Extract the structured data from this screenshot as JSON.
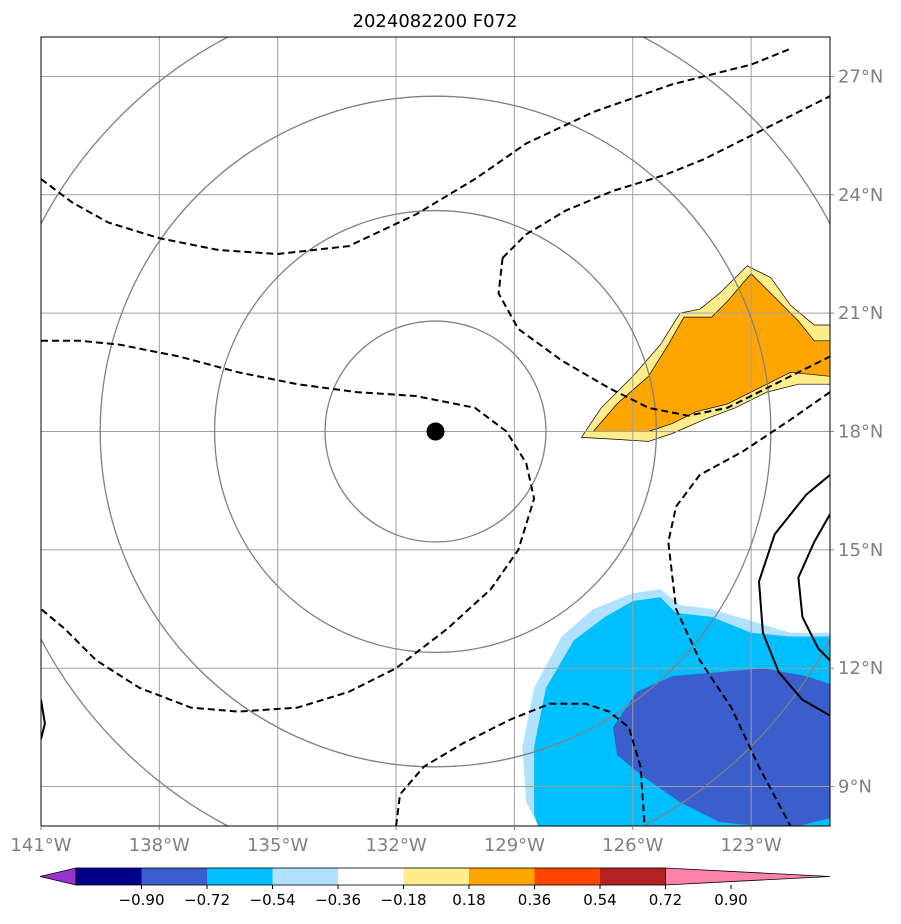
{
  "chart_data": {
    "type": "map-contour",
    "title": "2024082200 F072",
    "x_ticks": [
      "141°W",
      "138°W",
      "135°W",
      "132°W",
      "129°W",
      "126°W",
      "123°W"
    ],
    "x_tick_values": [
      -141,
      -138,
      -135,
      -132,
      -129,
      -126,
      -123
    ],
    "y_ticks": [
      "27°N",
      "24°N",
      "21°N",
      "18°N",
      "15°N",
      "12°N",
      "9°N"
    ],
    "y_tick_values": [
      27,
      24,
      21,
      18,
      15,
      12,
      9
    ],
    "xlim": [
      -141,
      -121
    ],
    "ylim": [
      8,
      28
    ],
    "grid": true,
    "center": {
      "lon": -131,
      "lat": 18
    },
    "range_rings_deg": [
      2.8,
      5.6,
      8.5,
      11.3
    ],
    "colorbar": {
      "ticks": [
        "−0.90",
        "−0.72",
        "−0.54",
        "−0.36",
        "−0.18",
        "0.18",
        "0.36",
        "0.54",
        "0.72",
        "0.90"
      ],
      "bounds": [
        -0.9,
        -0.72,
        -0.54,
        -0.36,
        -0.18,
        0.18,
        0.36,
        0.54,
        0.72,
        0.9
      ],
      "colors": [
        "#9932CC",
        "#00008B",
        "#3A5FCD",
        "#00BFFF",
        "#B0E2FF",
        "#FFFFFF",
        "#FFEC8B",
        "#FFA500",
        "#FF4500",
        "#B22222",
        "#FF82AB"
      ],
      "extend": "both"
    },
    "filled_regions": [
      {
        "level": "0.18 to 0.36",
        "color": "#FFEC8B",
        "polygon_lonlat": [
          [
            -127.3,
            17.85
          ],
          [
            -126.8,
            18.6
          ],
          [
            -126.0,
            19.4
          ],
          [
            -125.3,
            20.2
          ],
          [
            -124.8,
            21.0
          ],
          [
            -124.3,
            21.1
          ],
          [
            -123.8,
            21.5
          ],
          [
            -123.1,
            22.2
          ],
          [
            -122.5,
            21.9
          ],
          [
            -122.0,
            21.2
          ],
          [
            -121.4,
            20.7
          ],
          [
            -121,
            20.7
          ],
          [
            -121,
            19.2
          ],
          [
            -121.8,
            19.2
          ],
          [
            -122.6,
            19.0
          ],
          [
            -123.4,
            18.6
          ],
          [
            -124.2,
            18.3
          ],
          [
            -125.0,
            17.95
          ],
          [
            -125.6,
            17.75
          ],
          [
            -126.4,
            17.8
          ]
        ]
      },
      {
        "level": "0.36 to 0.54",
        "color": "#FFA500",
        "polygon_lonlat": [
          [
            -127.0,
            18.0
          ],
          [
            -126.4,
            18.7
          ],
          [
            -125.6,
            19.4
          ],
          [
            -125.1,
            20.2
          ],
          [
            -124.7,
            20.9
          ],
          [
            -124.0,
            20.9
          ],
          [
            -123.6,
            21.3
          ],
          [
            -123.0,
            22.0
          ],
          [
            -122.4,
            21.4
          ],
          [
            -121.8,
            20.8
          ],
          [
            -121.4,
            20.3
          ],
          [
            -121,
            20.3
          ],
          [
            -121,
            19.4
          ],
          [
            -122.0,
            19.5
          ],
          [
            -122.8,
            19.1
          ],
          [
            -123.6,
            18.7
          ],
          [
            -124.4,
            18.5
          ],
          [
            -125.0,
            18.2
          ],
          [
            -125.6,
            18.0
          ],
          [
            -126.4,
            18.0
          ]
        ]
      },
      {
        "level": "-0.36 to -0.18",
        "color": "#B0E2FF",
        "polygon_lonlat": [
          [
            -128.7,
            8.6
          ],
          [
            -128.8,
            10.0
          ],
          [
            -128.5,
            11.5
          ],
          [
            -127.8,
            12.8
          ],
          [
            -127.0,
            13.5
          ],
          [
            -126.0,
            13.9
          ],
          [
            -125.3,
            14.0
          ],
          [
            -124.8,
            13.6
          ],
          [
            -124.0,
            13.5
          ],
          [
            -123.0,
            13.2
          ],
          [
            -122.0,
            12.9
          ],
          [
            -121,
            12.9
          ],
          [
            -121,
            8
          ],
          [
            -128.4,
            8
          ]
        ]
      },
      {
        "level": "-0.54 to -0.36",
        "color": "#00BFFF",
        "polygon_lonlat": [
          [
            -128.5,
            8.3
          ],
          [
            -128.5,
            10.0
          ],
          [
            -128.2,
            11.5
          ],
          [
            -127.5,
            12.7
          ],
          [
            -126.7,
            13.3
          ],
          [
            -126.0,
            13.7
          ],
          [
            -125.3,
            13.8
          ],
          [
            -124.9,
            13.4
          ],
          [
            -124.0,
            13.3
          ],
          [
            -123.0,
            12.9
          ],
          [
            -122.0,
            12.8
          ],
          [
            -121,
            12.8
          ],
          [
            -121,
            8
          ],
          [
            -128.4,
            8
          ]
        ]
      },
      {
        "level": "-0.72 to -0.54",
        "color": "#3A5FCD",
        "polygon_lonlat": [
          [
            -126.5,
            10.5
          ],
          [
            -125.9,
            11.4
          ],
          [
            -125.0,
            11.8
          ],
          [
            -123.8,
            11.9
          ],
          [
            -122.7,
            12.0
          ],
          [
            -121.6,
            11.8
          ],
          [
            -121,
            11.6
          ],
          [
            -121,
            8.2
          ],
          [
            -121.8,
            8.0
          ],
          [
            -122.8,
            8.0
          ],
          [
            -123.8,
            8.1
          ],
          [
            -124.8,
            8.6
          ],
          [
            -125.8,
            9.3
          ],
          [
            -126.4,
            9.8
          ]
        ]
      }
    ],
    "pressure_lines_dashed": [
      [
        [
          -141,
          24.4
        ],
        [
          -140.2,
          23.8
        ],
        [
          -139.3,
          23.3
        ],
        [
          -138,
          22.9
        ],
        [
          -136.5,
          22.6
        ],
        [
          -135,
          22.5
        ],
        [
          -133.2,
          22.7
        ],
        [
          -131.5,
          23.5
        ],
        [
          -130.0,
          24.4
        ],
        [
          -128.7,
          25.3
        ],
        [
          -127.0,
          26.1
        ],
        [
          -125.0,
          26.8
        ],
        [
          -123.0,
          27.3
        ],
        [
          -122.0,
          27.7
        ]
      ],
      [
        [
          -141,
          20.3
        ],
        [
          -140,
          20.3
        ],
        [
          -139,
          20.2
        ],
        [
          -137.5,
          19.9
        ],
        [
          -136,
          19.5
        ],
        [
          -134.5,
          19.2
        ],
        [
          -133,
          19.0
        ],
        [
          -131.5,
          18.9
        ],
        [
          -130,
          18.6
        ],
        [
          -129.2,
          18.0
        ],
        [
          -128.7,
          17.2
        ],
        [
          -128.5,
          16.3
        ],
        [
          -128.9,
          15.0
        ],
        [
          -129.6,
          14.0
        ],
        [
          -130.7,
          13.0
        ],
        [
          -132.0,
          12.0
        ],
        [
          -133.2,
          11.4
        ],
        [
          -134.5,
          11.0
        ],
        [
          -136.0,
          10.9
        ],
        [
          -137.2,
          11.0
        ],
        [
          -138.5,
          11.5
        ],
        [
          -139.6,
          12.2
        ],
        [
          -140.4,
          13.0
        ],
        [
          -141,
          13.5
        ]
      ],
      [
        [
          -129.3,
          22.4
        ],
        [
          -128.7,
          23.0
        ],
        [
          -127.7,
          23.6
        ],
        [
          -126.5,
          24.1
        ],
        [
          -125.2,
          24.5
        ],
        [
          -124.2,
          24.9
        ],
        [
          -123.0,
          25.5
        ],
        [
          -121.8,
          26.1
        ],
        [
          -121,
          26.5
        ]
      ],
      [
        [
          -129.3,
          22.4
        ],
        [
          -129.4,
          21.5
        ],
        [
          -128.9,
          20.6
        ],
        [
          -127.8,
          19.8
        ],
        [
          -126.6,
          19.1
        ],
        [
          -125.6,
          18.6
        ],
        [
          -124.6,
          18.4
        ],
        [
          -123.6,
          18.6
        ],
        [
          -122.6,
          19.1
        ],
        [
          -121.8,
          19.5
        ],
        [
          -121,
          19.9
        ]
      ],
      [
        [
          -121,
          19.0
        ],
        [
          -122.0,
          18.3
        ],
        [
          -123.2,
          17.5
        ],
        [
          -124.3,
          16.9
        ],
        [
          -124.9,
          16.1
        ],
        [
          -125.1,
          15.2
        ],
        [
          -124.9,
          13.5
        ],
        [
          -124.3,
          12.2
        ],
        [
          -123.5,
          11.0
        ],
        [
          -122.8,
          9.5
        ],
        [
          -122.0,
          8.0
        ]
      ],
      [
        [
          -132.0,
          8.0
        ],
        [
          -131.9,
          8.8
        ],
        [
          -131.3,
          9.5
        ],
        [
          -130.3,
          10.1
        ],
        [
          -129.1,
          10.7
        ],
        [
          -128.1,
          11.1
        ],
        [
          -127.2,
          11.1
        ],
        [
          -126.6,
          10.9
        ],
        [
          -126.1,
          10.5
        ],
        [
          -125.8,
          9.5
        ],
        [
          -125.7,
          8.0
        ]
      ]
    ],
    "pressure_lines_solid": [
      [
        [
          -121,
          16.9
        ],
        [
          -121.6,
          16.4
        ],
        [
          -122.4,
          15.4
        ],
        [
          -122.8,
          14.2
        ],
        [
          -122.7,
          12.9
        ],
        [
          -122.3,
          11.9
        ],
        [
          -121.7,
          11.2
        ],
        [
          -121,
          10.8
        ]
      ],
      [
        [
          -121,
          15.9
        ],
        [
          -121.4,
          15.2
        ],
        [
          -121.8,
          14.3
        ],
        [
          -121.7,
          13.3
        ],
        [
          -121.3,
          12.5
        ],
        [
          -121,
          12.2
        ]
      ]
    ],
    "edge_fragment": [
      [
        -141,
        11.2
      ],
      [
        -140.9,
        10.6
      ],
      [
        -141,
        10.2
      ]
    ]
  }
}
